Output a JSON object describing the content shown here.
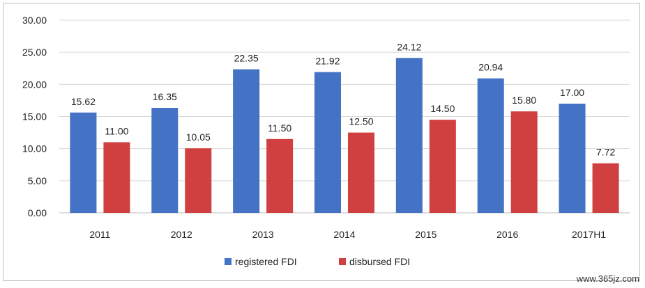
{
  "chart_data": {
    "type": "bar",
    "categories": [
      "2011",
      "2012",
      "2013",
      "2014",
      "2015",
      "2016",
      "2017H1"
    ],
    "series": [
      {
        "name": "registered FDI",
        "values": [
          15.62,
          16.35,
          22.35,
          21.92,
          24.12,
          20.94,
          17.0
        ],
        "labels": [
          "15.62",
          "16.35",
          "22.35",
          "21.92",
          "24.12",
          "20.94",
          "17.00"
        ],
        "color": "#4472c4"
      },
      {
        "name": "disbursed FDI",
        "values": [
          11.0,
          10.05,
          11.5,
          12.5,
          14.5,
          15.8,
          7.72
        ],
        "labels": [
          "11.00",
          "10.05",
          "11.50",
          "12.50",
          "14.50",
          "15.80",
          "7.72"
        ],
        "color": "#d04040"
      }
    ],
    "y_ticks": [
      "0.00",
      "5.00",
      "10.00",
      "15.00",
      "20.00",
      "25.00",
      "30.00"
    ],
    "ylim": [
      0,
      30
    ],
    "grid": true,
    "legend_position": "bottom"
  },
  "watermark": "www.365jz.com"
}
